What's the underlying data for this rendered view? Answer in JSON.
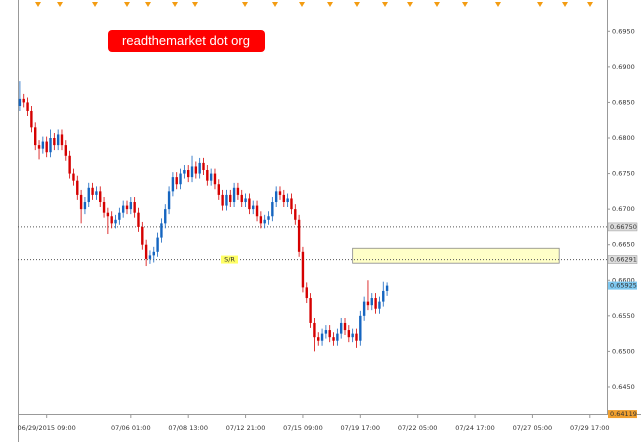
{
  "chart_data": {
    "type": "candlestick",
    "watermark": "readthemarket dot org",
    "annotation": "S/R",
    "up_color": "#1565c0",
    "down_color": "#d50000",
    "xlim": [
      -0.5,
      153.5
    ],
    "xticks": [
      {
        "value": 7,
        "label": "06/29/2015 09:00"
      },
      {
        "value": 29,
        "label": "07/06 01:00"
      },
      {
        "value": 44,
        "label": "07/08 13:00"
      },
      {
        "value": 59,
        "label": "07/12 21:00"
      },
      {
        "value": 74,
        "label": "07/15 09:00"
      },
      {
        "value": 89,
        "label": "07/19 17:00"
      },
      {
        "value": 104,
        "label": "07/22 05:00"
      },
      {
        "value": 119,
        "label": "07/24 17:00"
      },
      {
        "value": 134,
        "label": "07/27 05:00"
      },
      {
        "value": 149,
        "label": "07/29 17:00"
      }
    ],
    "ylim": [
      0.6412,
      0.6994
    ],
    "yticks": [
      {
        "value": 0.695,
        "label": "0.6950"
      },
      {
        "value": 0.69,
        "label": "0.6900"
      },
      {
        "value": 0.685,
        "label": "0.6850"
      },
      {
        "value": 0.68,
        "label": "0.6800"
      },
      {
        "value": 0.675,
        "label": "0.6750"
      },
      {
        "value": 0.67,
        "label": "0.6700"
      },
      {
        "value": 0.665,
        "label": "0.6650"
      },
      {
        "value": 0.66,
        "label": "0.6600"
      },
      {
        "value": 0.655,
        "label": "0.6550"
      },
      {
        "value": 0.65,
        "label": "0.6500"
      },
      {
        "value": 0.645,
        "label": "0.6450"
      }
    ],
    "levels": [
      {
        "value": 0.6675,
        "label": "0.66750"
      },
      {
        "value": 0.66291,
        "label": "0.66291"
      }
    ],
    "current_price": {
      "value": 0.65925,
      "label": "0.65925"
    },
    "low_marker": {
      "value": 0.64119,
      "label": "0.64119"
    },
    "zone": {
      "x": [
        87,
        141
      ],
      "y": [
        0.6645,
        0.6624
      ]
    },
    "ohlc": [
      [
        0.6845,
        0.688,
        0.6838,
        0.6855
      ],
      [
        0.6855,
        0.6862,
        0.6843,
        0.685
      ],
      [
        0.685,
        0.6857,
        0.6831,
        0.6838
      ],
      [
        0.6838,
        0.6845,
        0.6808,
        0.6815
      ],
      [
        0.6815,
        0.6822,
        0.6783,
        0.679
      ],
      [
        0.679,
        0.6797,
        0.677,
        0.6785
      ],
      [
        0.6785,
        0.6802,
        0.6778,
        0.6795
      ],
      [
        0.6795,
        0.6802,
        0.6773,
        0.678
      ],
      [
        0.678,
        0.6812,
        0.6773,
        0.68
      ],
      [
        0.68,
        0.6807,
        0.6783,
        0.679
      ],
      [
        0.679,
        0.6812,
        0.6783,
        0.6805
      ],
      [
        0.6805,
        0.6812,
        0.6783,
        0.679
      ],
      [
        0.679,
        0.6797,
        0.6768,
        0.6775
      ],
      [
        0.6775,
        0.6782,
        0.6743,
        0.675
      ],
      [
        0.675,
        0.6757,
        0.6733,
        0.674
      ],
      [
        0.674,
        0.6747,
        0.6713,
        0.672
      ],
      [
        0.672,
        0.6727,
        0.668,
        0.67
      ],
      [
        0.67,
        0.6717,
        0.6693,
        0.671
      ],
      [
        0.671,
        0.6737,
        0.6703,
        0.673
      ],
      [
        0.673,
        0.6737,
        0.6713,
        0.672
      ],
      [
        0.672,
        0.6732,
        0.6713,
        0.6725
      ],
      [
        0.6725,
        0.6732,
        0.6703,
        0.671
      ],
      [
        0.671,
        0.6717,
        0.6688,
        0.6695
      ],
      [
        0.6695,
        0.6702,
        0.6665,
        0.669
      ],
      [
        0.669,
        0.6697,
        0.6673,
        0.668
      ],
      [
        0.668,
        0.6692,
        0.6673,
        0.6685
      ],
      [
        0.6685,
        0.6702,
        0.6678,
        0.6695
      ],
      [
        0.6695,
        0.6712,
        0.6688,
        0.6705
      ],
      [
        0.6705,
        0.6712,
        0.6693,
        0.67
      ],
      [
        0.67,
        0.6717,
        0.6693,
        0.671
      ],
      [
        0.671,
        0.6717,
        0.6688,
        0.6695
      ],
      [
        0.6695,
        0.6702,
        0.6668,
        0.6675
      ],
      [
        0.6675,
        0.6682,
        0.6643,
        0.665
      ],
      [
        0.665,
        0.6657,
        0.662,
        0.663
      ],
      [
        0.663,
        0.6642,
        0.6623,
        0.6635
      ],
      [
        0.6635,
        0.6647,
        0.6625,
        0.664
      ],
      [
        0.664,
        0.6667,
        0.6633,
        0.666
      ],
      [
        0.666,
        0.6687,
        0.6653,
        0.668
      ],
      [
        0.668,
        0.6707,
        0.6673,
        0.67
      ],
      [
        0.67,
        0.6732,
        0.6693,
        0.6725
      ],
      [
        0.6725,
        0.6752,
        0.6718,
        0.6745
      ],
      [
        0.6745,
        0.6752,
        0.6728,
        0.6735
      ],
      [
        0.6735,
        0.6757,
        0.6728,
        0.675
      ],
      [
        0.675,
        0.6762,
        0.6743,
        0.6755
      ],
      [
        0.6755,
        0.6762,
        0.6738,
        0.6745
      ],
      [
        0.6745,
        0.6775,
        0.6738,
        0.676
      ],
      [
        0.676,
        0.6767,
        0.6743,
        0.675
      ],
      [
        0.675,
        0.6772,
        0.6743,
        0.6765
      ],
      [
        0.6765,
        0.6772,
        0.6748,
        0.6755
      ],
      [
        0.6755,
        0.6762,
        0.6733,
        0.674
      ],
      [
        0.674,
        0.6757,
        0.6733,
        0.675
      ],
      [
        0.675,
        0.6757,
        0.6728,
        0.6735
      ],
      [
        0.6735,
        0.6742,
        0.6713,
        0.672
      ],
      [
        0.672,
        0.6727,
        0.6698,
        0.6705
      ],
      [
        0.6705,
        0.6727,
        0.6698,
        0.672
      ],
      [
        0.672,
        0.6727,
        0.6703,
        0.671
      ],
      [
        0.671,
        0.6737,
        0.6703,
        0.673
      ],
      [
        0.673,
        0.6737,
        0.6713,
        0.672
      ],
      [
        0.672,
        0.6727,
        0.6703,
        0.671
      ],
      [
        0.671,
        0.6722,
        0.6703,
        0.6715
      ],
      [
        0.6715,
        0.6722,
        0.6693,
        0.67
      ],
      [
        0.67,
        0.6712,
        0.6693,
        0.6705
      ],
      [
        0.6705,
        0.6712,
        0.6683,
        0.669
      ],
      [
        0.669,
        0.6697,
        0.6673,
        0.668
      ],
      [
        0.668,
        0.6692,
        0.6673,
        0.6685
      ],
      [
        0.6685,
        0.6697,
        0.6678,
        0.669
      ],
      [
        0.669,
        0.6717,
        0.6683,
        0.671
      ],
      [
        0.671,
        0.6732,
        0.6703,
        0.6725
      ],
      [
        0.6725,
        0.6732,
        0.6713,
        0.672
      ],
      [
        0.672,
        0.6727,
        0.6703,
        0.671
      ],
      [
        0.671,
        0.6722,
        0.6703,
        0.6715
      ],
      [
        0.6715,
        0.6722,
        0.6693,
        0.67
      ],
      [
        0.67,
        0.6707,
        0.6678,
        0.6685
      ],
      [
        0.6685,
        0.6692,
        0.6633,
        0.664
      ],
      [
        0.664,
        0.6647,
        0.6583,
        0.659
      ],
      [
        0.659,
        0.6597,
        0.6568,
        0.6575
      ],
      [
        0.6575,
        0.6582,
        0.6533,
        0.654
      ],
      [
        0.654,
        0.6547,
        0.65,
        0.652
      ],
      [
        0.652,
        0.6527,
        0.6508,
        0.6515
      ],
      [
        0.6515,
        0.6532,
        0.6508,
        0.6525
      ],
      [
        0.6525,
        0.6537,
        0.6518,
        0.653
      ],
      [
        0.653,
        0.6537,
        0.6513,
        0.652
      ],
      [
        0.652,
        0.6527,
        0.6508,
        0.6515
      ],
      [
        0.6515,
        0.6532,
        0.6508,
        0.6525
      ],
      [
        0.6525,
        0.6547,
        0.6518,
        0.654
      ],
      [
        0.654,
        0.6547,
        0.6523,
        0.653
      ],
      [
        0.653,
        0.6537,
        0.6513,
        0.652
      ],
      [
        0.652,
        0.6532,
        0.6513,
        0.6525
      ],
      [
        0.6525,
        0.6532,
        0.6505,
        0.6515
      ],
      [
        0.6515,
        0.6557,
        0.6508,
        0.655
      ],
      [
        0.655,
        0.6577,
        0.6543,
        0.657
      ],
      [
        0.657,
        0.66,
        0.6558,
        0.6565
      ],
      [
        0.6565,
        0.6582,
        0.6558,
        0.6575
      ],
      [
        0.6575,
        0.6582,
        0.6553,
        0.656
      ],
      [
        0.656,
        0.6577,
        0.6553,
        0.657
      ],
      [
        0.657,
        0.6598,
        0.6563,
        0.6585
      ],
      [
        0.6585,
        0.6597,
        0.6578,
        0.65925
      ]
    ]
  }
}
